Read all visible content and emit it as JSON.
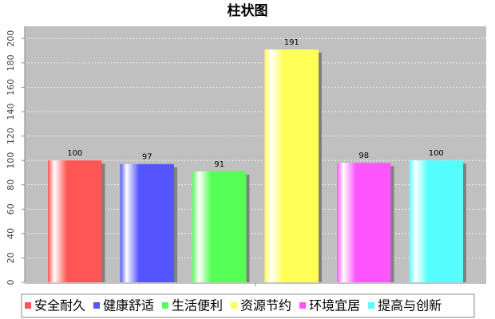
{
  "chart_data": {
    "type": "bar",
    "title": "柱状图",
    "categories": [
      null
    ],
    "series": [
      {
        "name": "安全耐久",
        "color": "#ff5555",
        "values": [
          100
        ]
      },
      {
        "name": "健康舒适",
        "color": "#5555ff",
        "values": [
          97
        ]
      },
      {
        "name": "生活便利",
        "color": "#55ff55",
        "values": [
          91
        ]
      },
      {
        "name": "资源节约",
        "color": "#ffff55",
        "values": [
          191
        ]
      },
      {
        "name": "环境宜居",
        "color": "#ff55ff",
        "values": [
          98
        ]
      },
      {
        "name": "提高与创新",
        "color": "#55ffff",
        "values": [
          100
        ]
      }
    ],
    "ylim": [
      0,
      210
    ],
    "yticks": [
      0,
      20,
      40,
      60,
      80,
      100,
      120,
      140,
      160,
      180,
      200
    ],
    "grid": true,
    "legend": "bottom"
  }
}
